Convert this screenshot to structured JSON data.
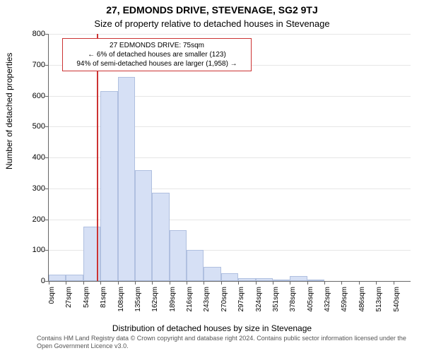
{
  "title_line1": "27, EDMONDS DRIVE, STEVENAGE, SG2 9TJ",
  "title_line2": "Size of property relative to detached houses in Stevenage",
  "y_axis_label": "Number of detached properties",
  "x_axis_label": "Distribution of detached houses by size in Stevenage",
  "attribution": "Contains HM Land Registry data © Crown copyright and database right 2024. Contains public sector information licensed under the Open Government Licence v3.0.",
  "chart": {
    "type": "histogram",
    "background_color": "#ffffff",
    "grid_color": "#e6e6e6",
    "axis_color": "#666666",
    "y": {
      "min": 0,
      "max": 800,
      "ticks": [
        0,
        100,
        200,
        300,
        400,
        500,
        600,
        700,
        800
      ],
      "font_size": 11
    },
    "x": {
      "tick_step": 27,
      "tick_count": 21,
      "unit_suffix": "sqm",
      "font_size": 10
    },
    "bars": {
      "fill": "#d6e0f5",
      "border": "#b0c0e0",
      "values": [
        20,
        20,
        175,
        615,
        660,
        360,
        285,
        165,
        100,
        45,
        25,
        10,
        10,
        5,
        15,
        3,
        0,
        0,
        0,
        0,
        0
      ]
    },
    "marker": {
      "position_sqm": 75,
      "color": "#cc3333",
      "width": 2
    },
    "info_box": {
      "line1": "27 EDMONDS DRIVE: 75sqm",
      "line2": "← 6% of detached houses are smaller (123)",
      "line3": "94% of semi-detached houses are larger (1,958) →",
      "border_color": "#cc3333",
      "font_size": 10
    }
  }
}
